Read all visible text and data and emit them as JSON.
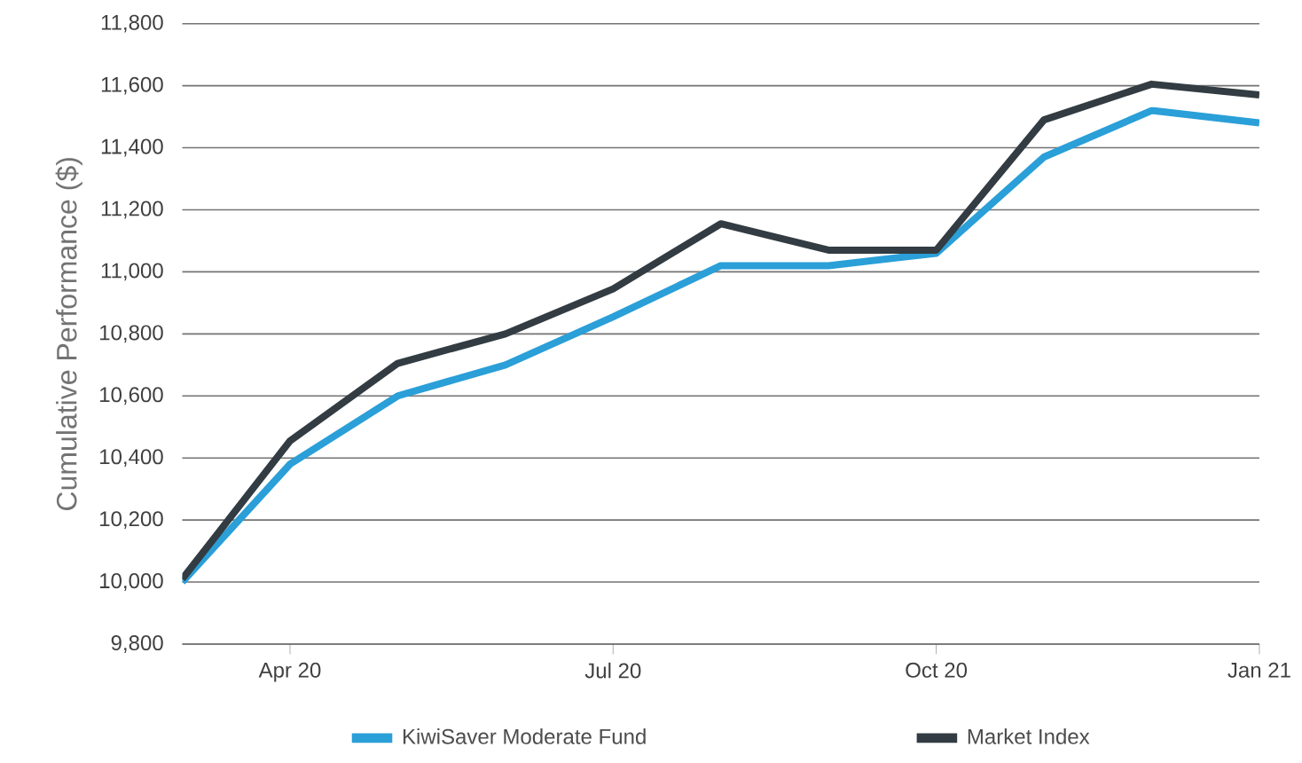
{
  "chart_data": {
    "type": "line",
    "ylabel": "Cumulative Performance ($)",
    "x": [
      "2020-03",
      "2020-04",
      "2020-05",
      "2020-06",
      "2020-07",
      "2020-08",
      "2020-09",
      "2020-10",
      "2020-11",
      "2020-12",
      "2021-01"
    ],
    "series": [
      {
        "name": "KiwiSaver Moderate Fund",
        "color": "#2a9fd8",
        "values": [
          10000,
          10380,
          10600,
          10700,
          10855,
          11020,
          11020,
          11060,
          11370,
          11520,
          11480
        ]
      },
      {
        "name": "Market Index",
        "color": "#323c42",
        "values": [
          10010,
          10455,
          10705,
          10800,
          10945,
          11155,
          11070,
          11070,
          11490,
          11605,
          11570
        ]
      }
    ],
    "xlim": [
      "2020-03",
      "2021-01"
    ],
    "xticks": [
      {
        "value": "2020-04",
        "label": "Apr 20"
      },
      {
        "value": "2020-07",
        "label": "Jul 20"
      },
      {
        "value": "2020-10",
        "label": "Oct 20"
      },
      {
        "value": "2021-01",
        "label": "Jan 21"
      }
    ],
    "ylim": [
      9800,
      11800
    ],
    "yticks": [
      {
        "value": 9800,
        "label": "9,800"
      },
      {
        "value": 10000,
        "label": "10,000"
      },
      {
        "value": 10200,
        "label": "10,200"
      },
      {
        "value": 10400,
        "label": "10,400"
      },
      {
        "value": 10600,
        "label": "10,600"
      },
      {
        "value": 10800,
        "label": "10,800"
      },
      {
        "value": 11000,
        "label": "11,000"
      },
      {
        "value": 11200,
        "label": "11,200"
      },
      {
        "value": 11400,
        "label": "11,400"
      },
      {
        "value": 11600,
        "label": "11,600"
      },
      {
        "value": 11800,
        "label": "11,800"
      }
    ],
    "grid": "y",
    "legend": "bottom",
    "marker": "none",
    "line_style": "solid"
  }
}
